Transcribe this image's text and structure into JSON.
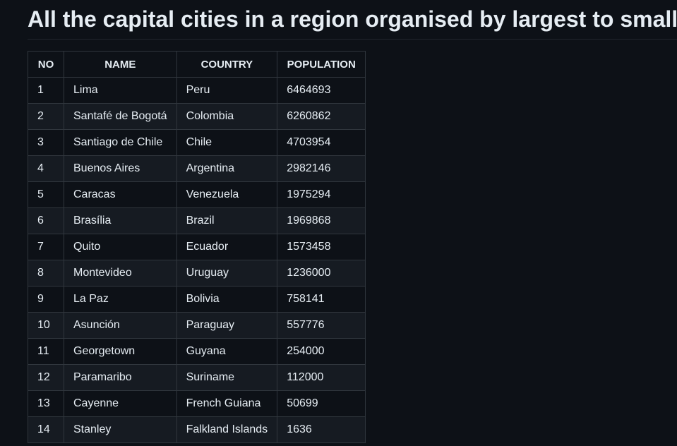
{
  "page": {
    "title": "All the capital cities in a region organised by largest to smallest"
  },
  "table": {
    "headers": [
      "NO",
      "NAME",
      "COUNTRY",
      "POPULATION"
    ],
    "rows": [
      [
        "1",
        "Lima",
        "Peru",
        "6464693"
      ],
      [
        "2",
        "Santafé de Bogotá",
        "Colombia",
        "6260862"
      ],
      [
        "3",
        "Santiago de Chile",
        "Chile",
        "4703954"
      ],
      [
        "4",
        "Buenos Aires",
        "Argentina",
        "2982146"
      ],
      [
        "5",
        "Caracas",
        "Venezuela",
        "1975294"
      ],
      [
        "6",
        "Brasília",
        "Brazil",
        "1969868"
      ],
      [
        "7",
        "Quito",
        "Ecuador",
        "1573458"
      ],
      [
        "8",
        "Montevideo",
        "Uruguay",
        "1236000"
      ],
      [
        "9",
        "La Paz",
        "Bolivia",
        "758141"
      ],
      [
        "10",
        "Asunción",
        "Paraguay",
        "557776"
      ],
      [
        "11",
        "Georgetown",
        "Guyana",
        "254000"
      ],
      [
        "12",
        "Paramaribo",
        "Suriname",
        "112000"
      ],
      [
        "13",
        "Cayenne",
        "French Guiana",
        "50699"
      ],
      [
        "14",
        "Stanley",
        "Falkland Islands",
        "1636"
      ]
    ]
  },
  "colors": {
    "background": "#0d1117",
    "row_alt": "#161b22",
    "border": "#30363d",
    "text": "#e6edf3"
  }
}
